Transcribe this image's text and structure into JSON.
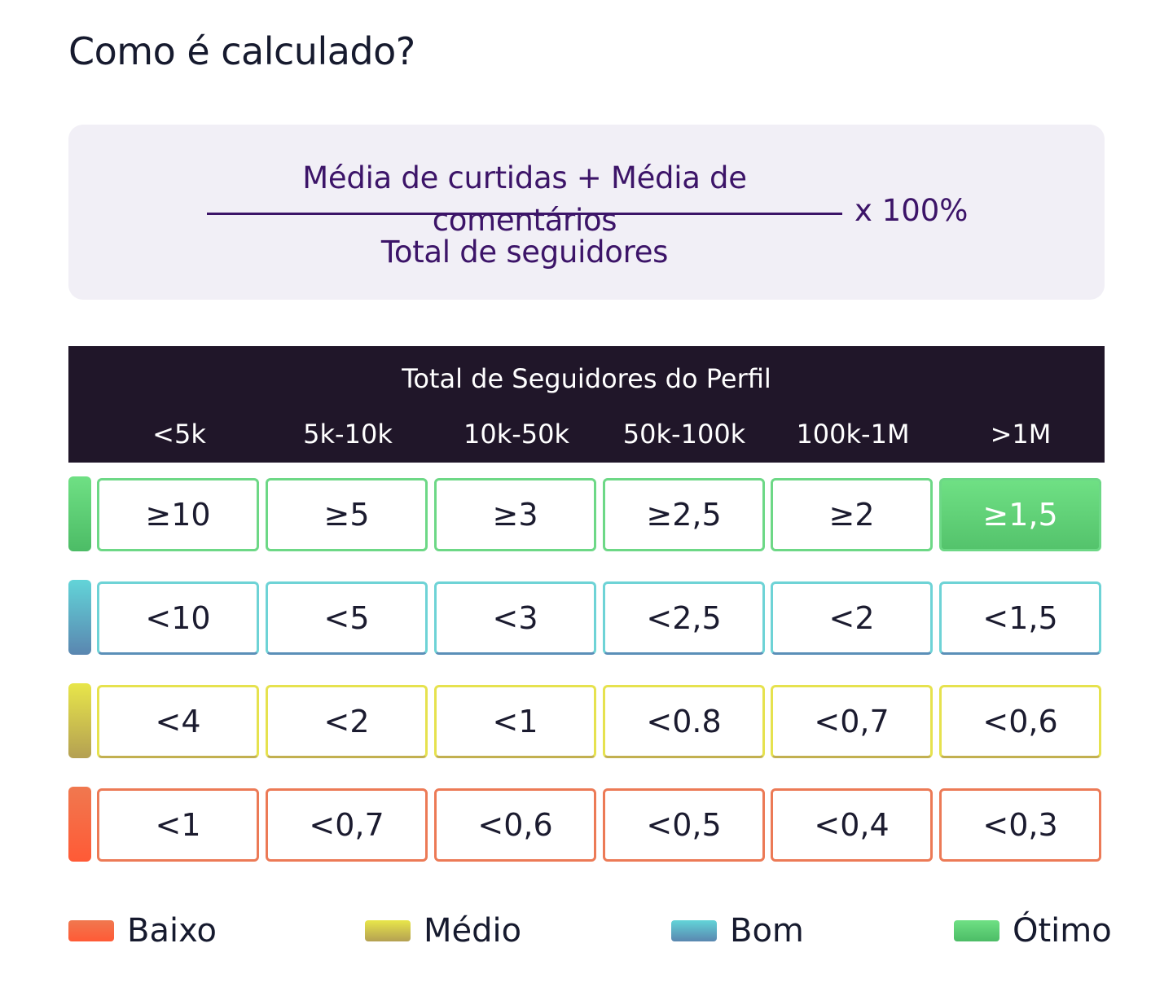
{
  "title": "Como é calculado?",
  "formula": {
    "numerator": "Média de curtidas + Média de comentários",
    "denominator": "Total de seguidores",
    "multiplier": "x 100%"
  },
  "table": {
    "header_title": "Total de Seguidores do Perfil",
    "columns": [
      "<5k",
      "5k-10k",
      "10k-50k",
      "50k-100k",
      "100k-1M",
      ">1M"
    ],
    "rows": [
      {
        "level": "Ótimo",
        "bar_colors": [
          "#6fe084",
          "#4cbc66"
        ],
        "border_color": "#6dd886",
        "cells": [
          "≥10",
          "≥5",
          "≥3",
          "≥2,5",
          "≥2",
          "≥1,5"
        ],
        "highlighted_column": 5
      },
      {
        "level": "Bom",
        "bar_colors": [
          "#62d4d8",
          "#5a86b0"
        ],
        "border_color_top": "#6ed3d6",
        "border_color_bottom": "#5a8fb8",
        "cells": [
          "<10",
          "<5",
          "<3",
          "<2,5",
          "<2",
          "<1,5"
        ]
      },
      {
        "level": "Médio",
        "bar_colors": [
          "#e8e64a",
          "#b4a052"
        ],
        "border_color_top": "#e6e24e",
        "border_color_bottom": "#c2b050",
        "cells": [
          "<4",
          "<2",
          "<1",
          "<0.8",
          "<0,7",
          "<0,6"
        ]
      },
      {
        "level": "Baixo",
        "bar_colors": [
          "#f0784f",
          "#ff5a36"
        ],
        "border_color": "#ec7a56",
        "cells": [
          "<1",
          "<0,7",
          "<0,6",
          "<0,5",
          "<0,4",
          "<0,3"
        ]
      }
    ]
  },
  "legend": [
    {
      "label": "Baixo",
      "colors": [
        "#f0784f",
        "#ff5a36"
      ]
    },
    {
      "label": "Médio",
      "colors": [
        "#e8e64a",
        "#b4a052"
      ]
    },
    {
      "label": "Bom",
      "colors": [
        "#62d4d8",
        "#5a86b0"
      ]
    },
    {
      "label": "Ótimo",
      "colors": [
        "#6fe084",
        "#4cbc66"
      ]
    }
  ]
}
